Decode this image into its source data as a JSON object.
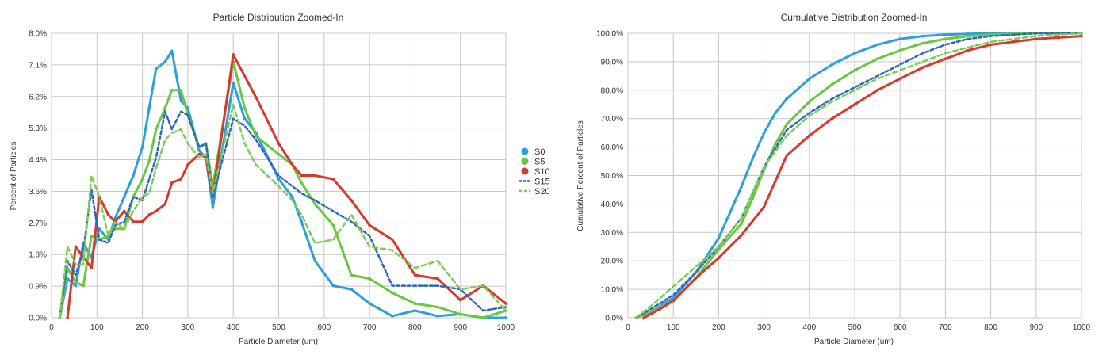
{
  "chart_data": [
    {
      "type": "line",
      "title": "Particle Distribution Zoomed-In",
      "xlabel": "Particle Diameter (um)",
      "ylabel": "Percent of Particles",
      "xlim": [
        0,
        1000
      ],
      "ylim": [
        0,
        8.0
      ],
      "x_ticks": [
        "0",
        "100",
        "200",
        "300",
        "400",
        "500",
        "600",
        "700",
        "800",
        "900",
        "1000"
      ],
      "y_ticks": [
        "0.0%",
        "0.9%",
        "1.8%",
        "2.7%",
        "3.6%",
        "4.4%",
        "5.3%",
        "6.2%",
        "7.1%",
        "8.0%"
      ],
      "grid": true,
      "legend": "right",
      "series": [
        {
          "name": "S0",
          "color": "#2f9fdb",
          "dash": "solid",
          "x": [
            18,
            35,
            53,
            70,
            88,
            105,
            125,
            140,
            160,
            180,
            200,
            215,
            230,
            250,
            265,
            285,
            300,
            325,
            340,
            355,
            400,
            425,
            450,
            500,
            530,
            550,
            580,
            620,
            660,
            700,
            750,
            800,
            850,
            900,
            950,
            1000
          ],
          "y": [
            0,
            1.1,
            0.9,
            2.1,
            1.7,
            2.5,
            2.2,
            2.8,
            3.4,
            4.0,
            4.8,
            5.9,
            7.0,
            7.2,
            7.5,
            6.1,
            5.9,
            4.7,
            4.5,
            3.1,
            6.6,
            5.6,
            5.2,
            3.9,
            3.4,
            2.7,
            1.6,
            0.9,
            0.8,
            0.4,
            0.05,
            0.2,
            0.05,
            0.1,
            0.0,
            0.0
          ]
        },
        {
          "name": "S5",
          "color": "#6cc644",
          "dash": "solid",
          "x": [
            18,
            35,
            53,
            70,
            88,
            105,
            125,
            140,
            160,
            180,
            200,
            215,
            230,
            250,
            265,
            285,
            300,
            325,
            340,
            355,
            400,
            425,
            450,
            500,
            530,
            550,
            580,
            620,
            660,
            700,
            750,
            800,
            850,
            900,
            950,
            1000
          ],
          "y": [
            0,
            1.4,
            1.0,
            0.9,
            2.3,
            2.2,
            2.3,
            2.5,
            2.5,
            3.4,
            3.9,
            4.4,
            5.3,
            5.9,
            6.4,
            6.4,
            5.7,
            4.8,
            4.9,
            3.7,
            7.2,
            5.9,
            5.1,
            4.6,
            4.3,
            3.8,
            3.2,
            2.6,
            1.2,
            1.1,
            0.7,
            0.4,
            0.3,
            0.1,
            0.0,
            0.2
          ]
        },
        {
          "name": "S10",
          "color": "#d63a2e",
          "dash": "solid",
          "x": [
            35,
            53,
            70,
            88,
            105,
            125,
            140,
            160,
            180,
            200,
            215,
            230,
            250,
            265,
            285,
            300,
            325,
            340,
            355,
            400,
            450,
            500,
            530,
            550,
            580,
            620,
            660,
            700,
            750,
            800,
            850,
            900,
            950,
            1000
          ],
          "y": [
            0,
            2.0,
            1.7,
            1.4,
            3.4,
            2.9,
            2.7,
            3.0,
            2.7,
            2.7,
            2.9,
            3.0,
            3.2,
            3.8,
            3.9,
            4.3,
            4.6,
            4.5,
            3.4,
            7.4,
            6.2,
            4.9,
            4.3,
            4.0,
            4.0,
            3.9,
            3.3,
            2.6,
            2.2,
            1.2,
            1.1,
            0.5,
            0.9,
            0.4
          ]
        },
        {
          "name": "S15",
          "color": "#2a67b8",
          "dash": "4,3",
          "x": [
            18,
            35,
            53,
            70,
            88,
            105,
            125,
            140,
            160,
            180,
            200,
            215,
            230,
            250,
            265,
            285,
            300,
            325,
            340,
            355,
            400,
            425,
            450,
            500,
            530,
            550,
            580,
            620,
            660,
            700,
            750,
            800,
            850,
            900,
            950,
            1000
          ],
          "y": [
            0,
            1.6,
            1.2,
            1.9,
            3.6,
            2.2,
            2.1,
            2.6,
            2.7,
            3.4,
            3.3,
            3.9,
            4.5,
            5.8,
            5.3,
            5.8,
            5.7,
            4.8,
            4.9,
            3.4,
            5.6,
            5.4,
            5.0,
            4.0,
            3.7,
            3.5,
            3.3,
            3.0,
            2.7,
            2.3,
            0.9,
            0.9,
            0.9,
            0.8,
            0.2,
            0.3
          ]
        },
        {
          "name": "S20",
          "color": "#7dcc5a",
          "dash": "6,4",
          "x": [
            18,
            35,
            53,
            70,
            88,
            105,
            125,
            140,
            160,
            180,
            200,
            215,
            230,
            250,
            265,
            285,
            300,
            325,
            340,
            355,
            400,
            425,
            450,
            500,
            530,
            550,
            580,
            620,
            660,
            700,
            750,
            800,
            850,
            900,
            950,
            1000
          ],
          "y": [
            0,
            2.0,
            1.5,
            1.5,
            4.0,
            3.4,
            2.3,
            2.7,
            2.5,
            3.0,
            3.4,
            3.5,
            4.2,
            5.0,
            5.2,
            5.3,
            4.9,
            4.5,
            4.6,
            3.5,
            6.0,
            4.9,
            4.3,
            3.7,
            3.3,
            2.9,
            2.1,
            2.2,
            2.9,
            2.0,
            1.9,
            1.4,
            1.6,
            0.8,
            0.9,
            0.2
          ]
        }
      ]
    },
    {
      "type": "line",
      "title": "Cumulative Distribution Zoomed-In",
      "xlabel": "Particle Diameter (um)",
      "ylabel": "Cumulative Percent of Particles",
      "xlim": [
        0,
        1000
      ],
      "ylim": [
        0,
        100
      ],
      "x_ticks": [
        "0",
        "100",
        "200",
        "300",
        "400",
        "500",
        "600",
        "700",
        "800",
        "900",
        "1000"
      ],
      "y_ticks": [
        "0.0%",
        "10.0%",
        "20.0%",
        "30.0%",
        "40.0%",
        "50.0%",
        "60.0%",
        "70.0%",
        "80.0%",
        "90.0%",
        "100.0%"
      ],
      "grid": true,
      "legend": "none",
      "series": [
        {
          "name": "S0",
          "color": "#2f9fdb",
          "dash": "solid",
          "x": [
            18,
            50,
            100,
            150,
            200,
            225,
            250,
            275,
            300,
            325,
            350,
            400,
            450,
            500,
            550,
            600,
            650,
            700,
            750,
            800,
            850,
            900,
            950,
            1000
          ],
          "y": [
            0,
            2,
            7,
            16,
            28,
            37,
            46,
            56,
            65,
            72,
            77,
            84,
            89,
            93,
            96,
            98,
            99,
            99.5,
            99.8,
            100,
            100,
            100,
            100,
            100
          ]
        },
        {
          "name": "S5",
          "color": "#6cc644",
          "dash": "solid",
          "x": [
            18,
            50,
            100,
            150,
            200,
            250,
            275,
            300,
            325,
            350,
            400,
            450,
            500,
            550,
            600,
            650,
            700,
            750,
            800,
            850,
            900,
            950,
            1000
          ],
          "y": [
            0,
            2,
            6,
            14,
            24,
            33,
            42,
            52,
            61,
            68,
            76,
            82,
            87,
            91,
            94,
            96.5,
            98,
            99,
            99.5,
            99.8,
            100,
            100,
            100
          ]
        },
        {
          "name": "S10",
          "color": "#d63a2e",
          "dash": "solid",
          "x": [
            35,
            70,
            100,
            150,
            200,
            250,
            300,
            325,
            350,
            400,
            450,
            500,
            550,
            600,
            650,
            700,
            750,
            800,
            850,
            900,
            950,
            1000
          ],
          "y": [
            0,
            3,
            6,
            14,
            21,
            29,
            39,
            48,
            57,
            64,
            70,
            75,
            80,
            84,
            88,
            91,
            94,
            96,
            97,
            98,
            98.5,
            99
          ]
        },
        {
          "name": "S15",
          "color": "#2a67b8",
          "dash": "4,3",
          "x": [
            18,
            50,
            100,
            150,
            200,
            250,
            300,
            350,
            400,
            450,
            500,
            550,
            600,
            650,
            700,
            750,
            800,
            850,
            900,
            950,
            1000
          ],
          "y": [
            0,
            3,
            8,
            16,
            25,
            35,
            53,
            66,
            72,
            77,
            81,
            85,
            89,
            93,
            96,
            98,
            99,
            99.5,
            100,
            100,
            100
          ]
        },
        {
          "name": "S20",
          "color": "#7dcc5a",
          "dash": "6,4",
          "x": [
            18,
            50,
            100,
            150,
            200,
            250,
            300,
            350,
            400,
            450,
            500,
            550,
            600,
            650,
            700,
            750,
            800,
            850,
            900,
            950,
            1000
          ],
          "y": [
            0,
            4,
            11,
            18,
            25,
            35,
            53,
            64,
            71,
            76,
            80,
            84,
            87,
            90,
            93,
            95,
            97,
            98,
            99,
            99.5,
            100
          ]
        }
      ]
    }
  ]
}
